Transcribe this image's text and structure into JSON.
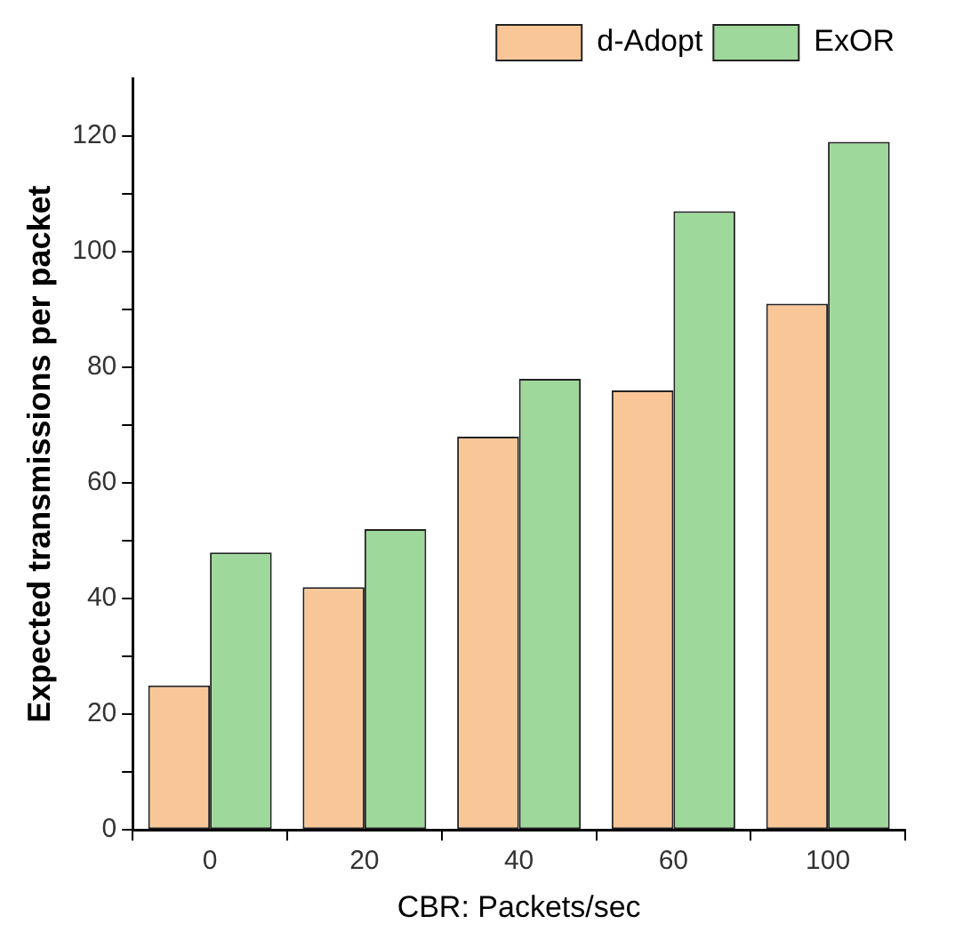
{
  "chart_data": {
    "type": "bar",
    "xlabel": "CBR: Packets/sec",
    "ylabel": "Expected transmissions per packet",
    "categories": [
      "0",
      "20",
      "40",
      "60",
      "100"
    ],
    "series": [
      {
        "name": "d-Adopt",
        "color": "#f9c797",
        "values": [
          25,
          42,
          68,
          76,
          91
        ]
      },
      {
        "name": "ExOR",
        "color": "#9fd89b",
        "values": [
          48,
          52,
          78,
          107,
          119
        ]
      }
    ],
    "ylim": [
      0,
      130
    ],
    "yticks": [
      0,
      {
        "value": 10,
        "label": null
      },
      20,
      {
        "value": 30,
        "label": null
      },
      40,
      {
        "value": 50,
        "label": null
      },
      60,
      {
        "value": 70,
        "label": null
      },
      80,
      {
        "value": 90,
        "label": null
      },
      100,
      {
        "value": 110,
        "label": null
      },
      120
    ],
    "grid": false,
    "legend": "top right"
  }
}
